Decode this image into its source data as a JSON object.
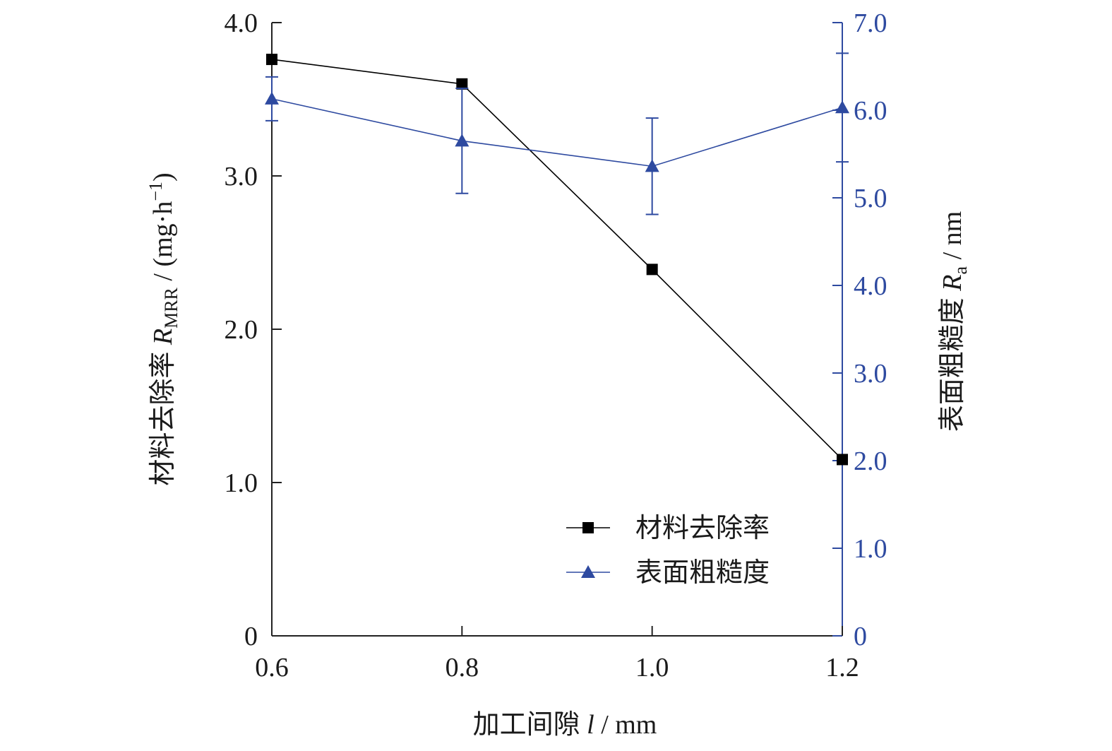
{
  "chart_data": {
    "type": "line",
    "xlabel_main": "加工间隙 ",
    "xlabel_var": "l",
    "xlabel_unit": " / mm",
    "ylabel_left_main": "材料去除率 ",
    "ylabel_left_var": "R",
    "ylabel_left_sub": "MRR",
    "ylabel_left_unit": " / (mg·h",
    "ylabel_left_sup": "−1",
    "ylabel_left_close": ")",
    "ylabel_right_main": "表面粗糙度 ",
    "ylabel_right_var": "R",
    "ylabel_right_sub": "a",
    "ylabel_right_unit": " / nm",
    "x": [
      0.6,
      0.8,
      1.0,
      1.2
    ],
    "x_ticks": [
      "0.6",
      "0.8",
      "1.0",
      "1.2"
    ],
    "xlim": [
      0.6,
      1.2
    ],
    "ylim_left": [
      0,
      4.0
    ],
    "ylim_right": [
      0,
      7.0
    ],
    "left_ticks": [
      {
        "v": 0,
        "label": "0"
      },
      {
        "v": 1.0,
        "label": "1.0"
      },
      {
        "v": 2.0,
        "label": "2.0"
      },
      {
        "v": 3.0,
        "label": "3.0"
      },
      {
        "v": 4.0,
        "label": "4.0"
      }
    ],
    "right_ticks": [
      {
        "v": 0,
        "label": "0"
      },
      {
        "v": 1.0,
        "label": "1.0"
      },
      {
        "v": 2.0,
        "label": "2.0"
      },
      {
        "v": 3.0,
        "label": "3.0"
      },
      {
        "v": 4.0,
        "label": "4.0"
      },
      {
        "v": 5.0,
        "label": "5.0"
      },
      {
        "v": 6.0,
        "label": "6.0"
      },
      {
        "v": 7.0,
        "label": "7.0"
      }
    ],
    "series": [
      {
        "name": "材料去除率",
        "axis": "left",
        "marker": "square",
        "color": "#000000",
        "values": [
          3.76,
          3.6,
          2.39,
          1.15
        ]
      },
      {
        "name": "表面粗糙度",
        "axis": "right",
        "marker": "triangle",
        "color": "#2e4aa0",
        "values": [
          6.13,
          5.65,
          5.36,
          6.03
        ],
        "errors": [
          0.25,
          0.6,
          0.55,
          0.62
        ]
      }
    ],
    "legend_position": "bottom-right",
    "grid": false
  }
}
